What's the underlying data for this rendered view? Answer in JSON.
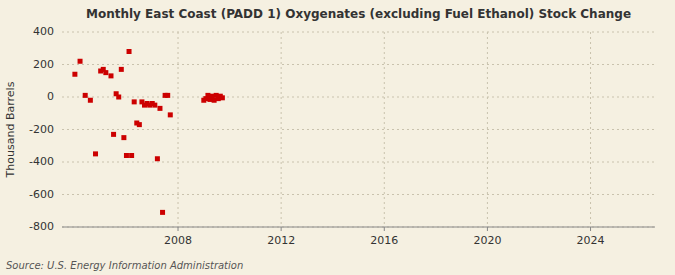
{
  "chart_data": {
    "type": "scatter",
    "title": "Monthly East Coast (PADD 1) Oxygenates (excluding Fuel Ethanol) Stock Change",
    "y_label": "Thousand Barrels",
    "annotations": [
      "Source: U.S. Energy Information Administration"
    ],
    "color": "#cc0000",
    "marker": "square",
    "grid": true,
    "xlim": [
      2003.5,
      2026.5
    ],
    "ylim": [
      -800,
      400
    ],
    "xticks": [
      2008,
      2012,
      2016,
      2020,
      2024
    ],
    "yticks": [
      -800,
      -600,
      -400,
      -200,
      0,
      200,
      400
    ],
    "x": [
      2004.0,
      2004.2,
      2004.4,
      2004.6,
      2004.8,
      2005.0,
      2005.1,
      2005.2,
      2005.4,
      2005.5,
      2005.6,
      2005.7,
      2005.8,
      2005.9,
      2006.0,
      2006.1,
      2006.2,
      2006.3,
      2006.4,
      2006.5,
      2006.6,
      2006.7,
      2006.8,
      2006.9,
      2007.0,
      2007.1,
      2007.2,
      2007.3,
      2007.4,
      2007.5,
      2007.6,
      2007.7,
      2009.0,
      2009.08,
      2009.16,
      2009.24,
      2009.32,
      2009.4,
      2009.48,
      2009.56,
      2009.64,
      2009.72
    ],
    "values": [
      140,
      220,
      10,
      -20,
      -350,
      160,
      170,
      150,
      130,
      -230,
      20,
      0,
      170,
      -250,
      -360,
      280,
      -360,
      -30,
      -160,
      -170,
      -30,
      -50,
      -40,
      -50,
      -40,
      -50,
      -380,
      -70,
      -710,
      10,
      10,
      -110,
      -20,
      -10,
      10,
      -15,
      5,
      -20,
      10,
      -10,
      5,
      -5
    ]
  }
}
